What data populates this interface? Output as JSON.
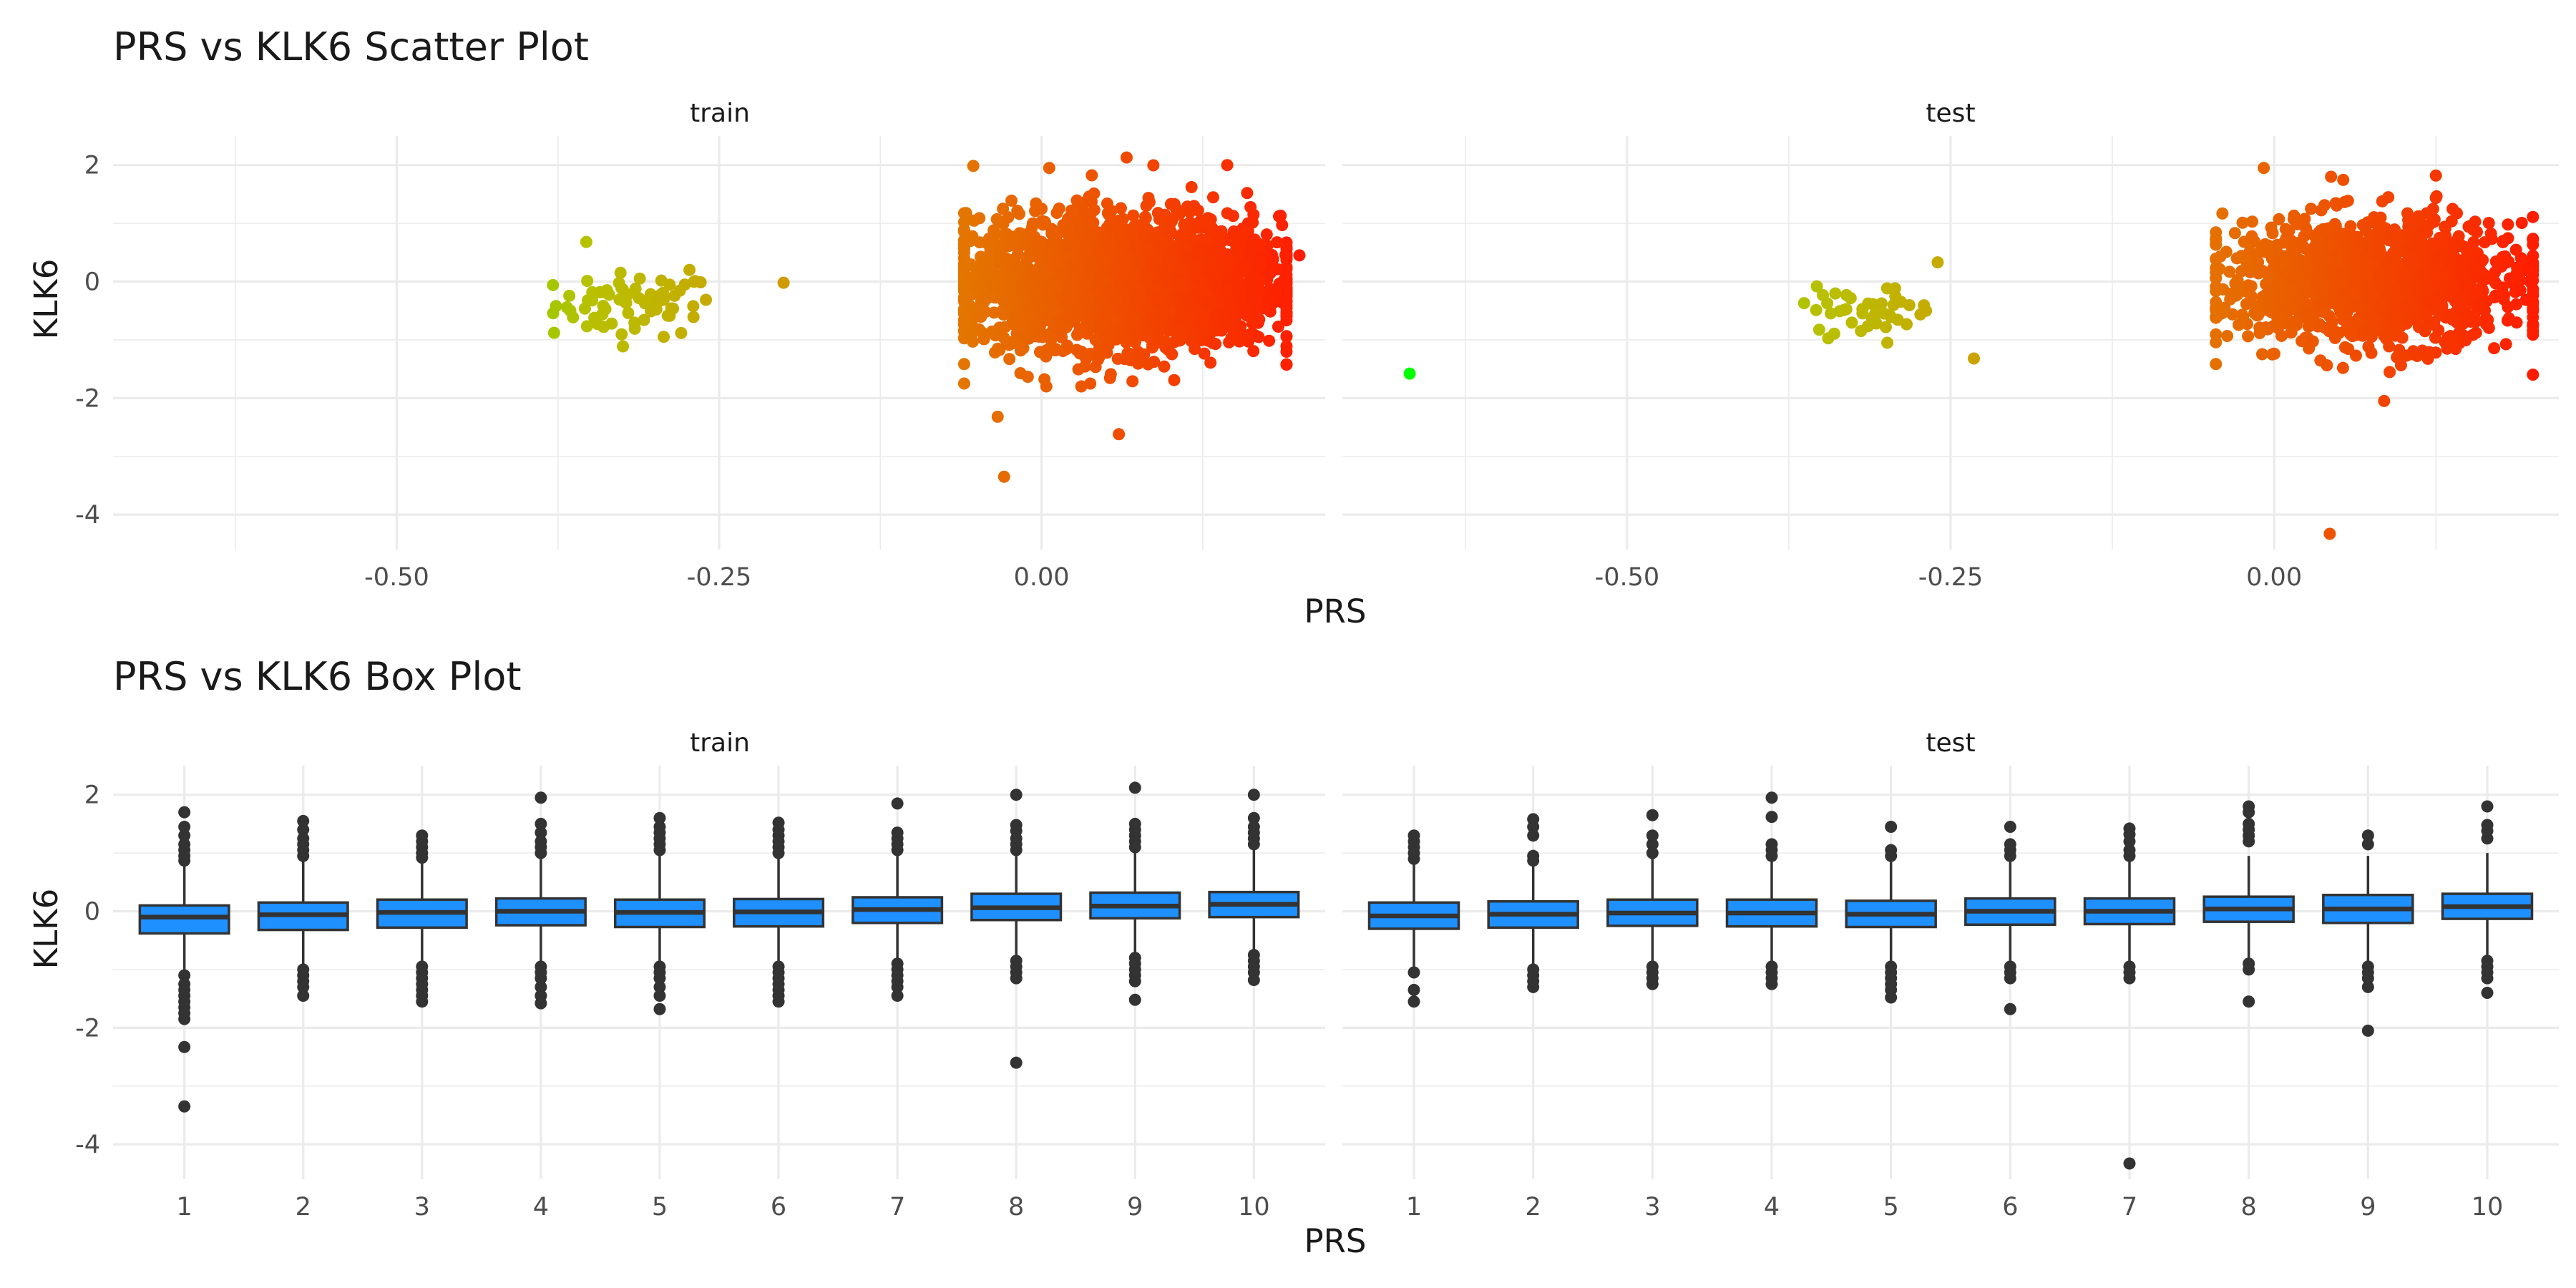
{
  "chart_data": [
    {
      "type": "scatter",
      "title": "PRS vs KLK6 Scatter Plot",
      "xlabel": "PRS",
      "ylabel": "KLK6",
      "xlim": [
        -0.72,
        0.22
      ],
      "ylim": [
        -4.6,
        2.5
      ],
      "x_ticks": [
        -0.5,
        -0.25,
        0.0
      ],
      "x_tick_labels": [
        "-0.50",
        "-0.25",
        "0.00"
      ],
      "y_ticks": [
        -4,
        -2,
        0,
        2
      ],
      "y_tick_labels": [
        "-4",
        "-2",
        "0",
        "2"
      ],
      "grid": true,
      "color_scale": {
        "low": "#00ff00",
        "mid": "#b8c000",
        "high": "#ff1a00",
        "range": [
          -0.65,
          0.21
        ]
      },
      "facets": [
        {
          "label": "train",
          "cluster_low": {
            "x_range": [
              -0.38,
              -0.25
            ],
            "y_range": [
              -1.2,
              0.7
            ],
            "n": 70
          },
          "cluster_main": {
            "x_range": [
              -0.06,
              0.19
            ],
            "y_range": [
              -1.8,
              2.1
            ],
            "n": 2600
          },
          "outliers": [
            {
              "x": -0.353,
              "y": 0.68
            },
            {
              "x": -0.2,
              "y": -0.02
            },
            {
              "x": -0.273,
              "y": 0.2
            },
            {
              "x": -0.378,
              "y": -0.88
            },
            {
              "x": -0.034,
              "y": -2.32
            },
            {
              "x": -0.029,
              "y": -3.35
            },
            {
              "x": 0.06,
              "y": -2.62
            },
            {
              "x": 0.144,
              "y": 2.0
            },
            {
              "x": 0.066,
              "y": 2.13
            },
            {
              "x": 0.006,
              "y": 1.95
            },
            {
              "x": -0.06,
              "y": -1.75
            },
            {
              "x": 0.2,
              "y": 0.45
            }
          ]
        },
        {
          "label": "test",
          "cluster_low": {
            "x_range": [
              -0.37,
              -0.26
            ],
            "y_range": [
              -1.05,
              0.35
            ],
            "n": 45
          },
          "cluster_main": {
            "x_range": [
              -0.045,
              0.2
            ],
            "y_range": [
              -1.7,
              2.0
            ],
            "n": 1300
          },
          "outliers": [
            {
              "x": -0.668,
              "y": -1.58
            },
            {
              "x": -0.232,
              "y": -1.32
            },
            {
              "x": -0.26,
              "y": 0.33
            },
            {
              "x": 0.043,
              "y": -4.33
            },
            {
              "x": 0.085,
              "y": -2.05
            },
            {
              "x": 0.125,
              "y": 1.82
            },
            {
              "x": -0.008,
              "y": 1.95
            },
            {
              "x": 0.2,
              "y": 0.02
            },
            {
              "x": 0.044,
              "y": 1.8
            }
          ]
        }
      ]
    },
    {
      "type": "box",
      "title": "PRS vs KLK6 Box Plot",
      "xlabel": "PRS",
      "ylabel": "KLK6",
      "categories": [
        "1",
        "2",
        "3",
        "4",
        "5",
        "6",
        "7",
        "8",
        "9",
        "10"
      ],
      "ylim": [
        -4.6,
        2.5
      ],
      "y_ticks": [
        -4,
        -2,
        0,
        2
      ],
      "y_tick_labels": [
        "-4",
        "-2",
        "0",
        "2"
      ],
      "box_color": "#1e90ff",
      "grid": true,
      "facets": [
        {
          "label": "train",
          "boxes": [
            {
              "q1": -0.38,
              "median": -0.1,
              "q3": 0.1,
              "lower": -1.0,
              "upper": 0.8,
              "outliers": [
                1.7,
                1.45,
                1.3,
                1.15,
                1.05,
                0.95,
                0.87,
                -1.1,
                -1.25,
                -1.35,
                -1.45,
                -1.55,
                -1.65,
                -1.75,
                -1.85,
                -2.33,
                -3.35
              ]
            },
            {
              "q1": -0.32,
              "median": -0.06,
              "q3": 0.15,
              "lower": -0.95,
              "upper": 0.85,
              "outliers": [
                1.55,
                1.4,
                1.25,
                1.15,
                1.05,
                0.95,
                -1.0,
                -1.1,
                -1.2,
                -1.3,
                -1.45
              ]
            },
            {
              "q1": -0.28,
              "median": -0.02,
              "q3": 0.2,
              "lower": -0.9,
              "upper": 0.9,
              "outliers": [
                1.3,
                1.2,
                1.1,
                1.0,
                0.92,
                -0.95,
                -1.05,
                -1.15,
                -1.25,
                -1.35,
                -1.45,
                -1.55
              ]
            },
            {
              "q1": -0.24,
              "median": 0.0,
              "q3": 0.22,
              "lower": -0.9,
              "upper": 0.95,
              "outliers": [
                1.95,
                1.5,
                1.35,
                1.2,
                1.1,
                1.0,
                -0.95,
                -1.05,
                -1.15,
                -1.3,
                -1.45,
                -1.58
              ]
            },
            {
              "q1": -0.27,
              "median": -0.02,
              "q3": 0.2,
              "lower": -0.9,
              "upper": 0.95,
              "outliers": [
                1.6,
                1.45,
                1.35,
                1.25,
                1.15,
                1.05,
                -0.95,
                -1.05,
                -1.15,
                -1.3,
                -1.45,
                -1.68
              ]
            },
            {
              "q1": -0.26,
              "median": -0.01,
              "q3": 0.21,
              "lower": -0.9,
              "upper": 0.95,
              "outliers": [
                1.52,
                1.4,
                1.3,
                1.2,
                1.1,
                1.0,
                -0.95,
                -1.05,
                -1.15,
                -1.25,
                -1.35,
                -1.45,
                -1.55
              ]
            },
            {
              "q1": -0.2,
              "median": 0.03,
              "q3": 0.24,
              "lower": -0.85,
              "upper": 0.95,
              "outliers": [
                1.85,
                1.35,
                1.25,
                1.15,
                1.05,
                -0.9,
                -1.0,
                -1.1,
                -1.2,
                -1.3,
                -1.45
              ]
            },
            {
              "q1": -0.15,
              "median": 0.06,
              "q3": 0.3,
              "lower": -0.8,
              "upper": 1.0,
              "outliers": [
                2.0,
                1.48,
                1.38,
                1.25,
                1.15,
                1.05,
                -0.85,
                -0.95,
                -1.05,
                -1.15,
                -2.6
              ]
            },
            {
              "q1": -0.12,
              "median": 0.09,
              "q3": 0.32,
              "lower": -0.75,
              "upper": 1.05,
              "outliers": [
                2.12,
                1.5,
                1.4,
                1.3,
                1.2,
                1.1,
                -0.8,
                -0.9,
                -1.0,
                -1.1,
                -1.2,
                -1.52
              ]
            },
            {
              "q1": -0.1,
              "median": 0.12,
              "q3": 0.33,
              "lower": -0.7,
              "upper": 1.05,
              "outliers": [
                2.0,
                1.6,
                1.45,
                1.35,
                1.25,
                1.15,
                -0.75,
                -0.85,
                -0.95,
                -1.05,
                -1.18
              ]
            }
          ]
        },
        {
          "label": "test",
          "boxes": [
            {
              "q1": -0.3,
              "median": -0.08,
              "q3": 0.15,
              "lower": -0.95,
              "upper": 0.85,
              "outliers": [
                1.3,
                1.2,
                1.1,
                1.0,
                0.9,
                -1.05,
                -1.35,
                -1.55
              ]
            },
            {
              "q1": -0.28,
              "median": -0.05,
              "q3": 0.17,
              "lower": -0.95,
              "upper": 0.85,
              "outliers": [
                1.58,
                1.45,
                1.3,
                0.95,
                0.87,
                -1.0,
                -1.1,
                -1.2,
                -1.3
              ]
            },
            {
              "q1": -0.25,
              "median": -0.03,
              "q3": 0.2,
              "lower": -0.9,
              "upper": 0.9,
              "outliers": [
                1.65,
                1.3,
                1.15,
                1.0,
                -0.95,
                -1.05,
                -1.15,
                -1.25
              ]
            },
            {
              "q1": -0.26,
              "median": -0.03,
              "q3": 0.2,
              "lower": -0.9,
              "upper": 0.9,
              "outliers": [
                1.95,
                1.62,
                1.15,
                1.05,
                0.95,
                -0.95,
                -1.05,
                -1.15,
                -1.25
              ]
            },
            {
              "q1": -0.27,
              "median": -0.05,
              "q3": 0.18,
              "lower": -0.9,
              "upper": 0.9,
              "outliers": [
                1.45,
                1.05,
                0.95,
                -0.95,
                -1.05,
                -1.15,
                -1.25,
                -1.35,
                -1.48
              ]
            },
            {
              "q1": -0.23,
              "median": 0.0,
              "q3": 0.22,
              "lower": -0.85,
              "upper": 0.9,
              "outliers": [
                1.45,
                1.15,
                1.05,
                0.95,
                -0.95,
                -1.05,
                -1.15,
                -1.68
              ]
            },
            {
              "q1": -0.22,
              "median": 0.0,
              "q3": 0.22,
              "lower": -0.85,
              "upper": 0.9,
              "outliers": [
                1.42,
                1.32,
                1.2,
                1.05,
                0.95,
                -0.95,
                -1.05,
                -1.15,
                -4.33
              ]
            },
            {
              "q1": -0.18,
              "median": 0.04,
              "q3": 0.25,
              "lower": -0.8,
              "upper": 0.95,
              "outliers": [
                1.8,
                1.7,
                1.5,
                1.4,
                1.3,
                1.2,
                -0.9,
                -1.0,
                -1.55
              ]
            },
            {
              "q1": -0.2,
              "median": 0.04,
              "q3": 0.28,
              "lower": -0.85,
              "upper": 0.95,
              "outliers": [
                1.3,
                1.15,
                -0.95,
                -1.05,
                -1.15,
                -1.3,
                -2.05
              ]
            },
            {
              "q1": -0.13,
              "median": 0.08,
              "q3": 0.3,
              "lower": -0.75,
              "upper": 1.0,
              "outliers": [
                1.8,
                1.48,
                1.38,
                1.25,
                -0.85,
                -0.95,
                -1.05,
                -1.15,
                -1.4
              ]
            }
          ]
        }
      ]
    }
  ]
}
